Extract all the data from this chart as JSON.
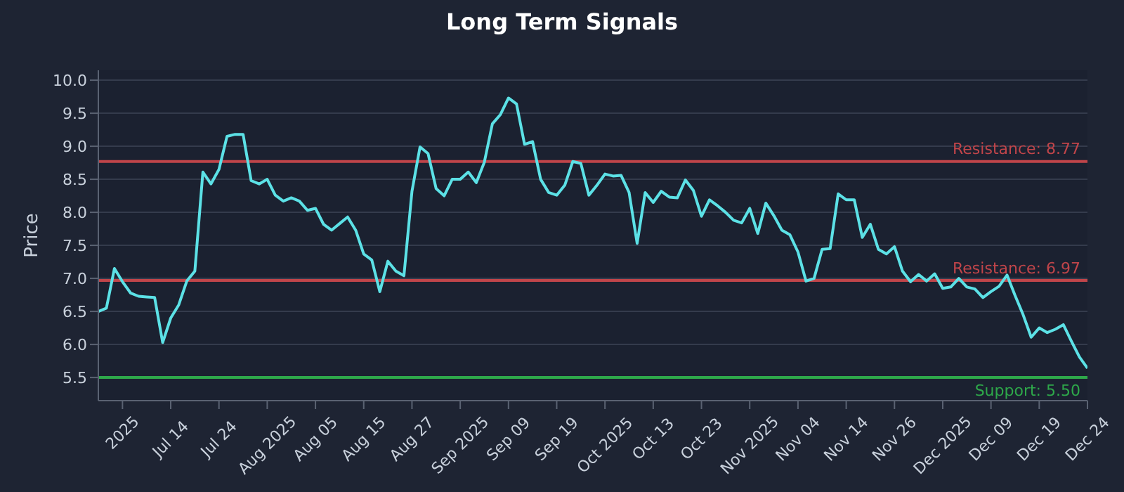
{
  "chart_data": {
    "type": "line",
    "title": "Long Term Signals",
    "ylabel": "Price",
    "categories": [
      null,
      null,
      null,
      "2025",
      null,
      null,
      null,
      null,
      null,
      "Jul 14",
      null,
      null,
      null,
      null,
      null,
      "Jul 24",
      null,
      null,
      null,
      null,
      null,
      "Aug 2025",
      null,
      null,
      null,
      null,
      null,
      "Aug 05",
      null,
      null,
      null,
      null,
      null,
      "Aug 15",
      null,
      null,
      null,
      null,
      null,
      "Aug 27",
      null,
      null,
      null,
      null,
      null,
      "Sep 2025",
      null,
      null,
      null,
      null,
      null,
      "Sep 09",
      null,
      null,
      null,
      null,
      null,
      "Sep 19",
      null,
      null,
      null,
      null,
      null,
      "Oct 2025",
      null,
      null,
      null,
      null,
      null,
      "Oct 13",
      null,
      null,
      null,
      null,
      null,
      "Oct 23",
      null,
      null,
      null,
      null,
      null,
      "Nov 2025",
      null,
      null,
      null,
      null,
      null,
      "Nov 04",
      null,
      null,
      null,
      null,
      null,
      "Nov 14",
      null,
      null,
      null,
      null,
      null,
      "Nov 26",
      null,
      null,
      null,
      null,
      null,
      "Dec 2025",
      null,
      null,
      null,
      null,
      null,
      "Dec 09",
      null,
      null,
      null,
      null,
      null,
      "Dec 19",
      null,
      null,
      null,
      null,
      null,
      "Dec 24"
    ],
    "series": [
      {
        "color": "#5ce1e6",
        "values": [
          6.5,
          6.55,
          7.15,
          6.95,
          6.78,
          6.73,
          6.72,
          6.71,
          6.03,
          6.4,
          6.6,
          6.96,
          7.11,
          8.61,
          8.43,
          8.65,
          9.15,
          9.18,
          9.18,
          8.48,
          8.43,
          8.5,
          8.26,
          8.17,
          8.22,
          8.17,
          8.03,
          8.06,
          7.82,
          7.73,
          7.83,
          7.93,
          7.73,
          7.37,
          7.28,
          6.8,
          7.26,
          7.11,
          7.04,
          8.32,
          8.99,
          8.89,
          8.36,
          8.25,
          8.5,
          8.5,
          8.61,
          8.45,
          8.76,
          9.34,
          9.48,
          9.73,
          9.64,
          9.03,
          9.07,
          8.5,
          8.3,
          8.26,
          8.41,
          8.77,
          8.74,
          8.26,
          8.41,
          8.58,
          8.55,
          8.56,
          8.3,
          7.53,
          8.3,
          8.15,
          8.32,
          8.23,
          8.22,
          8.49,
          8.33,
          7.94,
          8.19,
          8.1,
          8.0,
          7.88,
          7.84,
          8.06,
          7.68,
          8.14,
          7.95,
          7.73,
          7.66,
          7.4,
          6.96,
          7.0,
          7.44,
          7.45,
          8.28,
          8.19,
          8.19,
          7.62,
          7.82,
          7.44,
          7.37,
          7.48,
          7.11,
          6.95,
          7.06,
          6.96,
          7.07,
          6.85,
          6.87,
          7.0,
          6.87,
          6.84,
          6.71,
          6.8,
          6.88,
          7.05,
          6.74,
          6.45,
          6.11,
          6.25,
          6.18,
          6.23,
          6.3,
          6.05,
          5.81,
          5.64
        ]
      }
    ],
    "ylim": [
      5.15,
      10.15
    ],
    "yticks": [
      {
        "value": 5.5,
        "label": "5.5"
      },
      {
        "value": 6,
        "label": "6.0"
      },
      {
        "value": 6.5,
        "label": "6.5"
      },
      {
        "value": 7,
        "label": "7.0"
      },
      {
        "value": 7.5,
        "label": "7.5"
      },
      {
        "value": 8,
        "label": "8.0"
      },
      {
        "value": 8.5,
        "label": "8.5"
      },
      {
        "value": 9,
        "label": "9.0"
      },
      {
        "value": 9.5,
        "label": "9.5"
      },
      {
        "value": 10,
        "label": "10.0"
      }
    ],
    "grid": "y",
    "marker": "none",
    "line_style": "solid",
    "ref_lines": [
      {
        "axis": "y",
        "value": 8.77,
        "label": "Resistance: 8.77",
        "color": "#c0454a"
      },
      {
        "axis": "y",
        "value": 6.97,
        "label": "Resistance: 6.97",
        "color": "#c0454a"
      },
      {
        "axis": "y",
        "value": 5.5,
        "label": "Support: 5.50",
        "color": "#2ea84a"
      }
    ]
  }
}
